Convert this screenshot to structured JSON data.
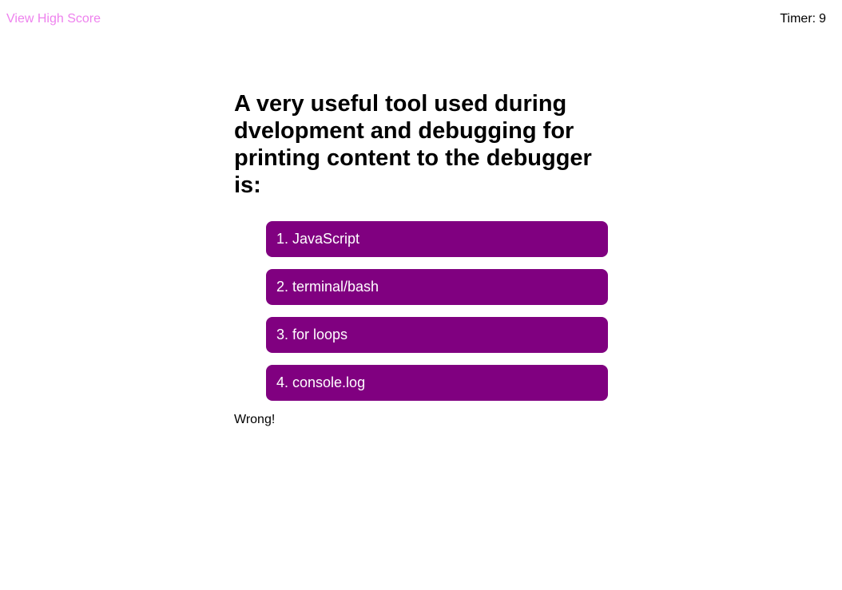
{
  "header": {
    "high_score_link": "View High Score",
    "timer_label": "Timer:",
    "timer_value": "9"
  },
  "question": {
    "text": "A very useful tool used during dvelopment and debugging for printing content to the debugger is:"
  },
  "answers": [
    {
      "label": "1. JavaScript"
    },
    {
      "label": "2. terminal/bash"
    },
    {
      "label": "3. for loops"
    },
    {
      "label": "4. console.log"
    }
  ],
  "feedback": {
    "text": "Wrong!"
  },
  "colors": {
    "link": "#ee82ee",
    "button_bg": "#800080",
    "button_text": "#ffffff",
    "background": "#ffffff"
  }
}
